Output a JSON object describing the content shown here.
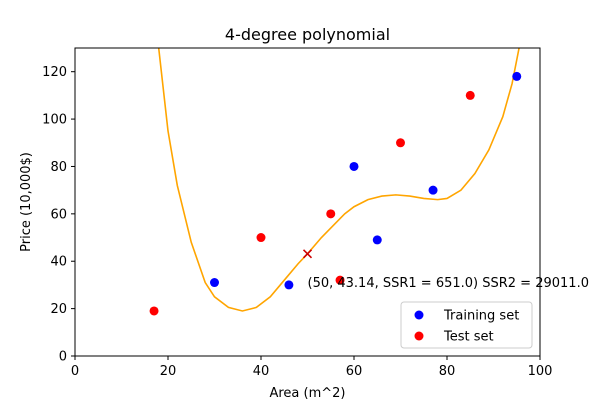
{
  "chart_data": {
    "type": "scatter",
    "title": "4-degree polynomial",
    "xlabel": "Area (m^2)",
    "ylabel": "Price (10,000$)",
    "xlim": [
      0,
      100
    ],
    "ylim": [
      0,
      130
    ],
    "x_ticks": [
      0,
      20,
      40,
      60,
      80,
      100
    ],
    "y_ticks": [
      0,
      20,
      40,
      60,
      80,
      100,
      120
    ],
    "grid": false,
    "legend_position": "bottom-right",
    "series": [
      {
        "name": "Training set",
        "kind": "scatter",
        "color": "#0000ff",
        "points": [
          [
            30,
            31
          ],
          [
            46,
            30
          ],
          [
            60,
            80
          ],
          [
            65,
            49
          ],
          [
            77,
            70
          ],
          [
            95,
            118
          ]
        ]
      },
      {
        "name": "Test set",
        "kind": "scatter",
        "color": "#ff0000",
        "points": [
          [
            17,
            19
          ],
          [
            40,
            50
          ],
          [
            55,
            60
          ],
          [
            57,
            32
          ],
          [
            70,
            90
          ],
          [
            85,
            110
          ]
        ]
      },
      {
        "kind": "line",
        "color": "#ffa500",
        "points": [
          [
            18,
            130
          ],
          [
            20,
            95
          ],
          [
            22,
            72
          ],
          [
            25,
            48
          ],
          [
            28,
            31
          ],
          [
            30,
            25
          ],
          [
            33,
            20.5
          ],
          [
            36,
            19
          ],
          [
            39,
            20.5
          ],
          [
            42,
            25
          ],
          [
            45,
            32
          ],
          [
            48,
            39
          ],
          [
            50,
            43.14
          ],
          [
            53,
            50
          ],
          [
            56,
            56
          ],
          [
            58,
            60
          ],
          [
            60,
            63
          ],
          [
            63,
            66
          ],
          [
            66,
            67.5
          ],
          [
            69,
            68
          ],
          [
            72,
            67.5
          ],
          [
            75,
            66.5
          ],
          [
            78,
            66
          ],
          [
            80,
            66.5
          ],
          [
            83,
            70
          ],
          [
            86,
            77
          ],
          [
            89,
            87
          ],
          [
            92,
            101
          ],
          [
            94,
            115
          ],
          [
            95.5,
            130
          ]
        ]
      },
      {
        "kind": "marker",
        "marker": "x",
        "color": "#cc0000",
        "points": [
          [
            50,
            43.14
          ]
        ]
      }
    ],
    "annotation": {
      "text": "(50, 43.14, SSR1 = 651.0) SSR2 = 29011.0",
      "x": 50,
      "y": 43.14
    }
  }
}
